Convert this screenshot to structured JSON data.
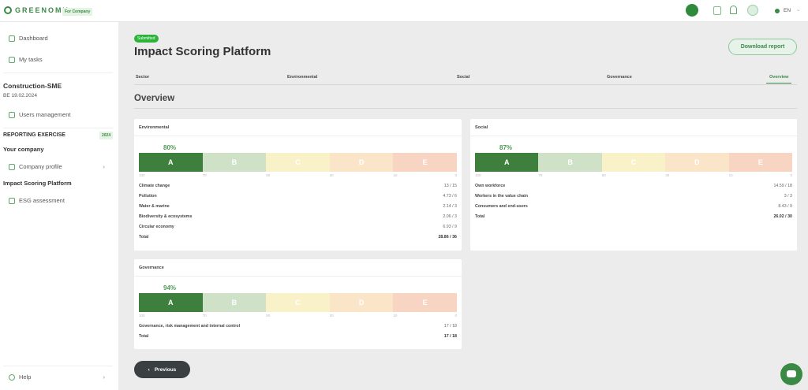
{
  "header": {
    "brand": "GREENOMY",
    "brand_tag": "For Company",
    "language": "EN",
    "icons": [
      "apps-icon",
      "calendar-icon",
      "bell-icon",
      "user-icon",
      "globe-icon"
    ]
  },
  "sidebar": {
    "top_items": [
      {
        "label": "Dashboard",
        "icon": "dashboard-icon"
      },
      {
        "label": "My tasks",
        "icon": "tasks-icon"
      }
    ],
    "company": "Construction-SME",
    "company_sub": "BE 19.02.2024",
    "users": "Users management",
    "reporting": "REPORTING EXERCISE",
    "year": "2024",
    "your_company": "Your company",
    "company_profile": "Company profile",
    "isp": "Impact Scoring Platform",
    "esg": "ESG assessment",
    "help": "Help"
  },
  "main": {
    "status": "Submitted",
    "title": "Impact Scoring Platform",
    "download": "Download report",
    "tabs": [
      "Sector",
      "Environmental",
      "Social",
      "Governance",
      "Overview"
    ],
    "active_tab": "Overview",
    "section": "Overview",
    "previous": "Previous",
    "grades": [
      "A",
      "B",
      "C",
      "D",
      "E"
    ],
    "ticks": [
      "100",
      "70",
      "50",
      "30",
      "10",
      "0"
    ],
    "grade_colors": [
      "#3e7f3e",
      "#cfe2c8",
      "#f9f2c9",
      "#fbe5c8",
      "#f8d5c2"
    ],
    "cards": [
      {
        "title": "Environmental",
        "score": "80%",
        "rows": [
          {
            "n": "Climate change",
            "v": "13 / 15"
          },
          {
            "n": "Pollution",
            "v": "4.73 / 6"
          },
          {
            "n": "Water & marine",
            "v": "2.14 / 3"
          },
          {
            "n": "Biodiversity & ecosystems",
            "v": "2.06 / 3"
          },
          {
            "n": "Circular economy",
            "v": "6.93 / 9"
          },
          {
            "n": "Total",
            "v": "28.86 / 36"
          }
        ]
      },
      {
        "title": "Social",
        "score": "87%",
        "rows": [
          {
            "n": "Own workforce",
            "v": "14.59 / 18"
          },
          {
            "n": "Workers in the value chain",
            "v": "3 / 3"
          },
          {
            "n": "Consumers and end-users",
            "v": "8.43 / 9"
          },
          {
            "n": "Total",
            "v": "26.02 / 30"
          }
        ]
      },
      {
        "title": "Governance",
        "score": "94%",
        "rows": [
          {
            "n": "Governance, risk management and internal control",
            "v": "17 / 18"
          },
          {
            "n": "Total",
            "v": "17 / 18"
          }
        ]
      }
    ]
  }
}
